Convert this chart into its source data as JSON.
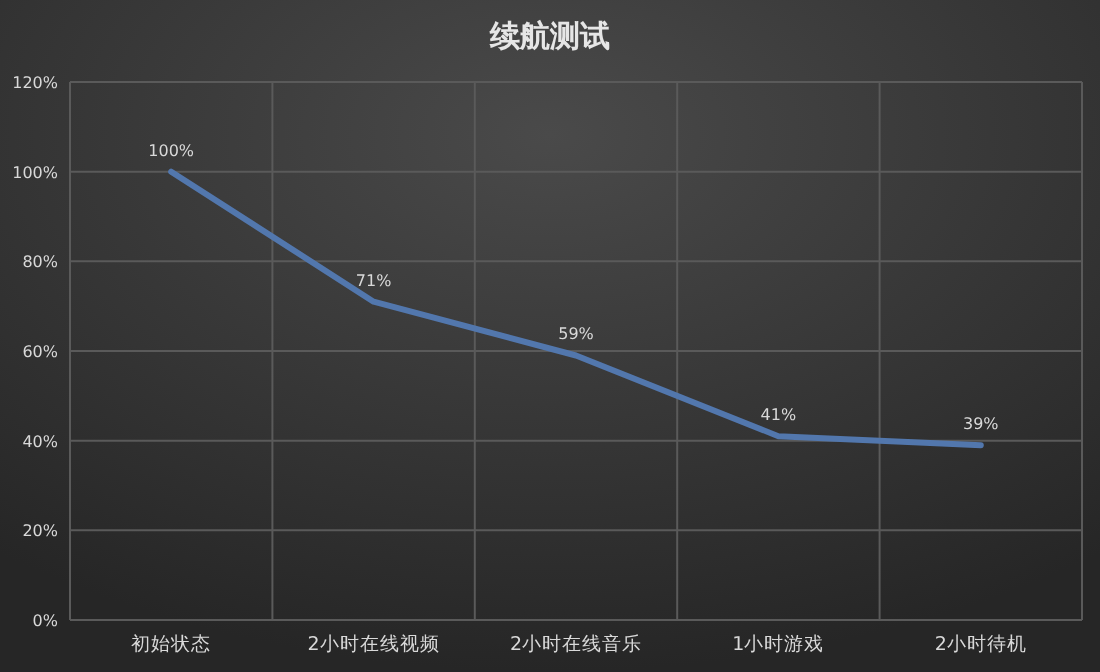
{
  "chart_data": {
    "type": "line",
    "title": "续航测试",
    "categories": [
      "初始状态",
      "2小时在线视频",
      "2小时在线音乐",
      "1小时游戏",
      "2小时待机"
    ],
    "series": [
      {
        "color": "#5277ad",
        "values": [
          100,
          71,
          59,
          41,
          39
        ]
      }
    ],
    "ylim": [
      0,
      120
    ],
    "yticks": [
      {
        "value": 0,
        "label": "0%"
      },
      {
        "value": 20,
        "label": "20%"
      },
      {
        "value": 40,
        "label": "40%"
      },
      {
        "value": 60,
        "label": "60%"
      },
      {
        "value": 80,
        "label": "80%"
      },
      {
        "value": 100,
        "label": "100%"
      },
      {
        "value": 120,
        "label": "120%"
      }
    ],
    "value_labels": [
      "100%",
      "71%",
      "59%",
      "41%",
      "39%"
    ],
    "grid": true,
    "marker": "none",
    "line_style": "solid"
  }
}
